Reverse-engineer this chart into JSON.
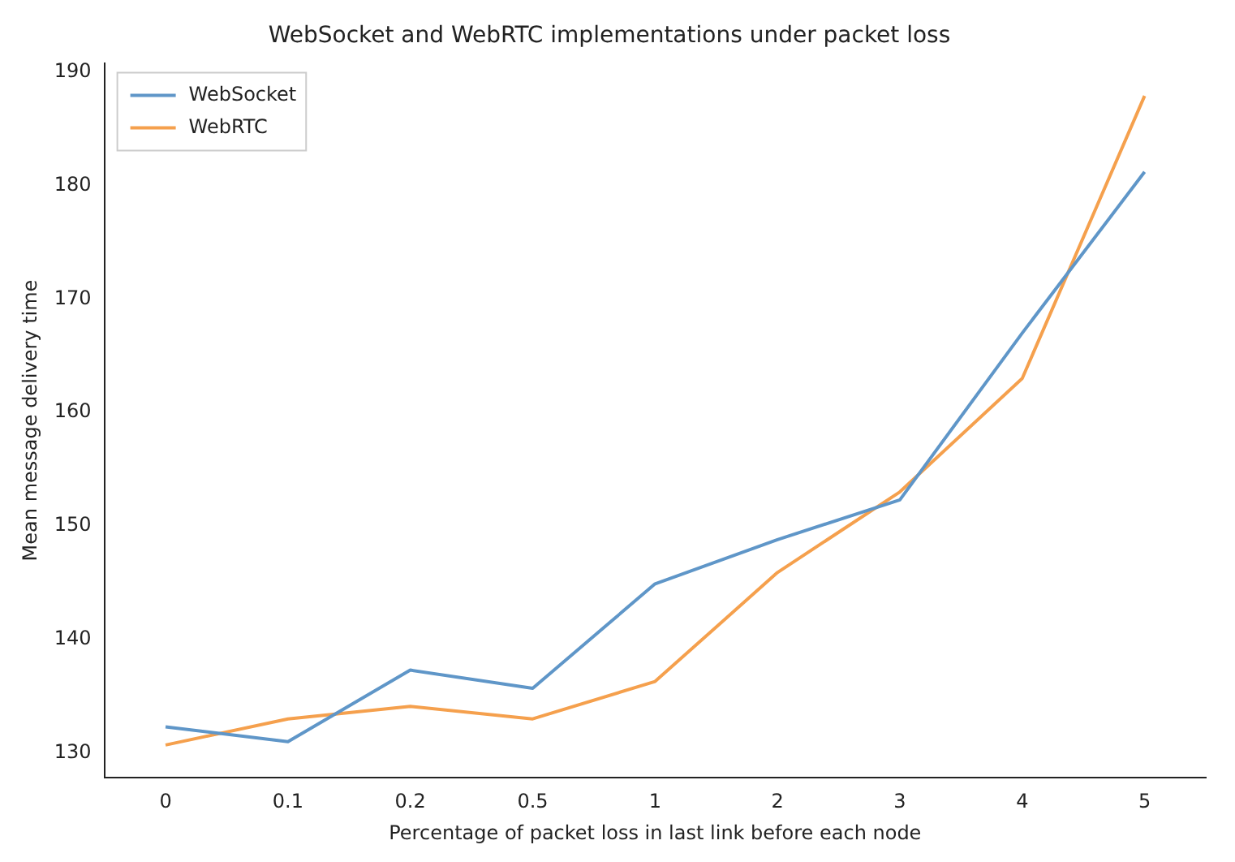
{
  "chart_data": {
    "type": "line",
    "title": "WebSocket and WebRTC implementations under packet loss",
    "xlabel": "Percentage of packet loss in last link before each node",
    "ylabel": "Mean message delivery time",
    "categories": [
      "0",
      "0.1",
      "0.2",
      "0.5",
      "1",
      "2",
      "3",
      "4",
      "5"
    ],
    "series": [
      {
        "name": "WebSocket",
        "color": "#5f96c8",
        "values": [
          132.3,
          131.0,
          137.3,
          135.7,
          144.9,
          148.8,
          152.3,
          167.0,
          181.2
        ]
      },
      {
        "name": "WebRTC",
        "color": "#f5a04d",
        "values": [
          130.7,
          133.0,
          134.1,
          133.0,
          136.3,
          145.9,
          153.0,
          163.0,
          187.9
        ]
      }
    ],
    "ylim": [
      127.8,
      190.8
    ],
    "yticks": [
      130,
      140,
      150,
      160,
      170,
      180,
      190
    ],
    "grid": false,
    "legend": "top left"
  }
}
